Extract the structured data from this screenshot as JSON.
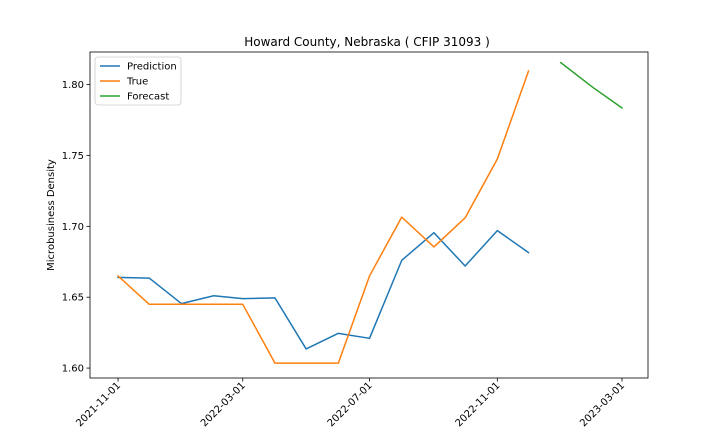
{
  "chart_data": {
    "type": "line",
    "title": "Howard County, Nebraska ( CFIP 31093 )",
    "xlabel": "",
    "ylabel": "Microbusiness Density",
    "x_ticks": [
      "2021-11-01",
      "2022-03-01",
      "2022-07-01",
      "2022-11-01",
      "2023-03-01"
    ],
    "y_ticks": [
      "1.60",
      "1.65",
      "1.70",
      "1.75",
      "1.80"
    ],
    "ylim": [
      1.593,
      1.823
    ],
    "xlim": [
      "2021-10-05",
      "2023-03-26"
    ],
    "grid": false,
    "legend_position": "top-left",
    "series": [
      {
        "name": "Prediction",
        "color": "#1f77b4",
        "x": [
          "2021-11-01",
          "2021-12-01",
          "2022-01-01",
          "2022-02-01",
          "2022-03-01",
          "2022-04-01",
          "2022-05-01",
          "2022-06-01",
          "2022-07-01",
          "2022-08-01",
          "2022-09-01",
          "2022-10-01",
          "2022-11-01",
          "2022-12-01"
        ],
        "values": [
          1.664,
          1.6635,
          1.6455,
          1.651,
          1.649,
          1.6495,
          1.6135,
          1.6245,
          1.621,
          1.676,
          1.6955,
          1.672,
          1.697,
          1.6815
        ]
      },
      {
        "name": "True",
        "color": "#ff7f0e",
        "x": [
          "2021-11-01",
          "2021-12-01",
          "2022-01-01",
          "2022-02-01",
          "2022-03-01",
          "2022-04-01",
          "2022-05-01",
          "2022-06-01",
          "2022-07-01",
          "2022-08-01",
          "2022-09-01",
          "2022-10-01",
          "2022-11-01",
          "2022-12-01"
        ],
        "values": [
          1.665,
          1.645,
          1.645,
          1.645,
          1.645,
          1.6035,
          1.6035,
          1.6035,
          1.665,
          1.7065,
          1.6855,
          1.706,
          1.7475,
          1.8095
        ]
      },
      {
        "name": "Forecast",
        "color": "#2ca02c",
        "x": [
          "2023-01-01",
          "2023-02-01",
          "2023-03-01"
        ],
        "values": [
          1.8155,
          1.798,
          1.7835
        ]
      }
    ]
  }
}
